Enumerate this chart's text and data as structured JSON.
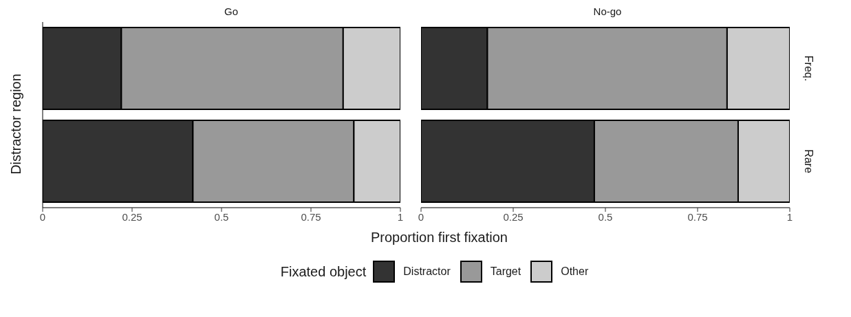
{
  "chart_data": [
    {
      "type": "bar",
      "title": "Go",
      "orientation": "horizontal",
      "stacked": true,
      "categories": [
        null,
        null
      ],
      "xlabel": "Proportion first fixation",
      "ylabel": "Distractor region",
      "legend_title": "Fixated object",
      "legend": "bottom",
      "xlim": [
        0,
        1
      ],
      "xticks": [
        0,
        0.25,
        0.5,
        0.75,
        1
      ],
      "grid": false,
      "series": [
        {
          "name": "Distractor",
          "color": "#333333",
          "values": [
            0.22,
            0.42
          ]
        },
        {
          "name": "Target",
          "color": "#999999",
          "values": [
            0.62,
            0.45
          ]
        },
        {
          "name": "Other",
          "color": "#cccccc",
          "values": [
            0.16,
            0.13
          ]
        }
      ]
    },
    {
      "type": "bar",
      "title": "No-go",
      "orientation": "horizontal",
      "stacked": true,
      "categories": [
        "Freq.",
        "Rare"
      ],
      "xlim": [
        0,
        1
      ],
      "xticks": [
        0,
        0.25,
        0.5,
        0.75,
        1
      ],
      "grid": false,
      "series": [
        {
          "color": "#333333",
          "values": [
            0.18,
            0.47
          ]
        },
        {
          "color": "#999999",
          "values": [
            0.65,
            0.39
          ]
        },
        {
          "color": "#cccccc",
          "values": [
            0.17,
            0.14
          ]
        }
      ]
    }
  ]
}
